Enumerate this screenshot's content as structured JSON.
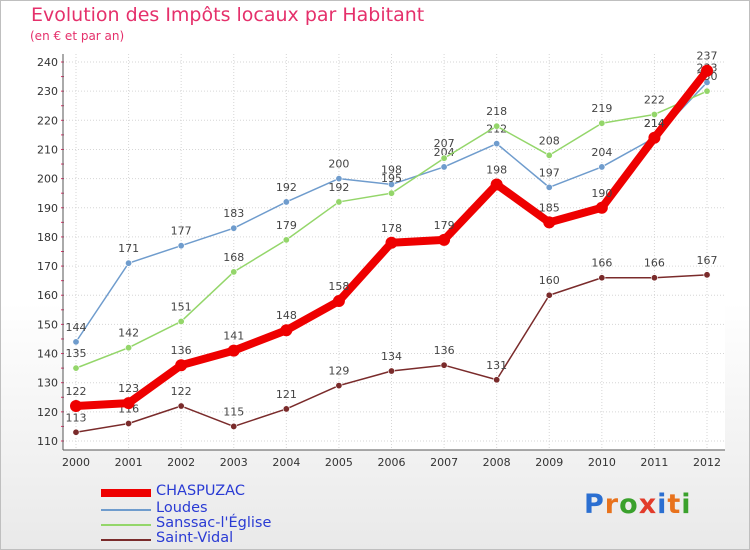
{
  "title": "Evolution des Impôts locaux par Habitant",
  "subtitle": "(en € et par an)",
  "chart_data": {
    "type": "line",
    "title": "Evolution des Impôts locaux par Habitant",
    "subtitle": "(en € et par an)",
    "xlabel": "",
    "ylabel": "",
    "x": [
      "2000",
      "2001",
      "2002",
      "2003",
      "2004",
      "2005",
      "2006",
      "2007",
      "2008",
      "2009",
      "2010",
      "2011",
      "2012"
    ],
    "ylim": [
      110,
      240
    ],
    "yticks": [
      110,
      120,
      130,
      140,
      150,
      160,
      170,
      180,
      190,
      200,
      210,
      220,
      230,
      240
    ],
    "grid": true,
    "series": [
      {
        "name": "Loudes",
        "color": "#6f9ccd",
        "values": [
          144,
          171,
          177,
          183,
          192,
          200,
          198,
          204,
          212,
          197,
          204,
          214,
          233
        ]
      },
      {
        "name": "Sanssac-l'Église",
        "color": "#94d66a",
        "values": [
          135,
          142,
          151,
          168,
          179,
          192,
          195,
          207,
          218,
          208,
          219,
          222,
          230
        ]
      },
      {
        "name": "Saint-Vidal",
        "color": "#7a2b2b",
        "values": [
          113,
          116,
          122,
          115,
          121,
          129,
          134,
          136,
          131,
          160,
          166,
          166,
          167
        ]
      },
      {
        "name": "CHASPUZAC",
        "color": "#ee0000",
        "values": [
          122,
          123,
          136,
          141,
          148,
          158,
          178,
          179,
          198,
          185,
          190,
          214,
          237
        ]
      }
    ],
    "legend": [
      {
        "name": "CHASPUZAC",
        "color": "#ee0000"
      },
      {
        "name": "Loudes",
        "color": "#6f9ccd"
      },
      {
        "name": "Sanssac-l'Église",
        "color": "#94d66a"
      },
      {
        "name": "Saint-Vidal",
        "color": "#7a2b2b"
      }
    ],
    "legend_position": "bottom-left"
  },
  "logo": {
    "text": "Proxiti",
    "colors": [
      "#2b6fd1",
      "#e8721c",
      "#3aa12c",
      "#e23b2a",
      "#2b6fd1",
      "#e8721c",
      "#3aa12c"
    ]
  }
}
